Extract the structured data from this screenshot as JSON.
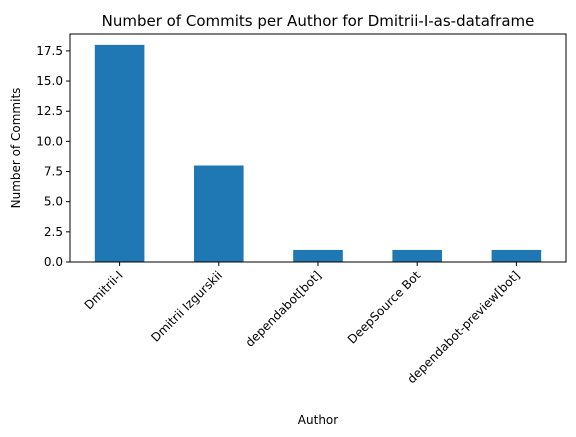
{
  "chart_data": {
    "type": "bar",
    "title": "Number of Commits per Author for Dmitrii-I-as-dataframe",
    "xlabel": "Author",
    "ylabel": "Number of Commits",
    "categories": [
      "Dmitrii-I",
      "Dmitrii Izgurskii",
      "dependabot[bot]",
      "DeepSource Bot",
      "dependabot-preview[bot]"
    ],
    "values": [
      18,
      8,
      1,
      1,
      1
    ],
    "ylim": [
      0,
      18.9
    ],
    "yticks": [
      0.0,
      2.5,
      5.0,
      7.5,
      10.0,
      12.5,
      15.0,
      17.5
    ],
    "ytick_labels": [
      "0.0",
      "2.5",
      "5.0",
      "7.5",
      "10.0",
      "12.5",
      "15.0",
      "17.5"
    ],
    "bar_color": "#1f77b4",
    "grid": false,
    "legend": "none"
  }
}
